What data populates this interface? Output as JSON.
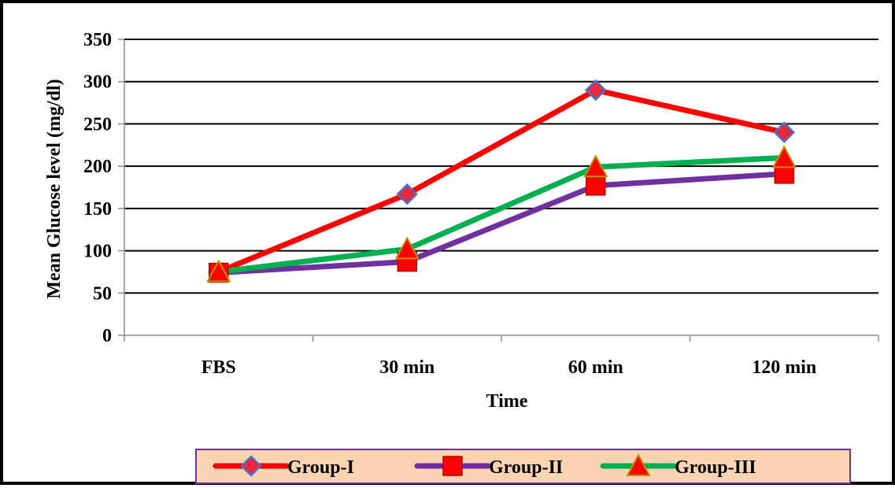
{
  "chart_data": {
    "type": "line",
    "categories": [
      "FBS",
      "30 min",
      "60 min",
      "120 min"
    ],
    "xlabel": "Time",
    "ylabel": "Mean Glucose level (mg/dl)",
    "ylim": [
      0,
      350
    ],
    "yticks": [
      0,
      50,
      100,
      150,
      200,
      250,
      300,
      350
    ],
    "grid": true,
    "legend_position": "bottom",
    "series": [
      {
        "name": "Group-I",
        "values": [
          75,
          167,
          290,
          240
        ],
        "color": "#ff0000",
        "marker": "diamond",
        "marker_fill": "#e8283c",
        "marker_stroke": "#4f6fc4"
      },
      {
        "name": "Group-II",
        "values": [
          74,
          87,
          177,
          191
        ],
        "color": "#7030a0",
        "marker": "square",
        "marker_fill": "#ff0000",
        "marker_stroke": "#c00000"
      },
      {
        "name": "Group-III",
        "values": [
          75,
          102,
          199,
          210
        ],
        "color": "#00b050",
        "marker": "triangle",
        "marker_fill": "#ff0000",
        "marker_stroke": "#c09000"
      }
    ],
    "legend_background": "#fbd4b4",
    "legend_border": "#7030a0"
  }
}
